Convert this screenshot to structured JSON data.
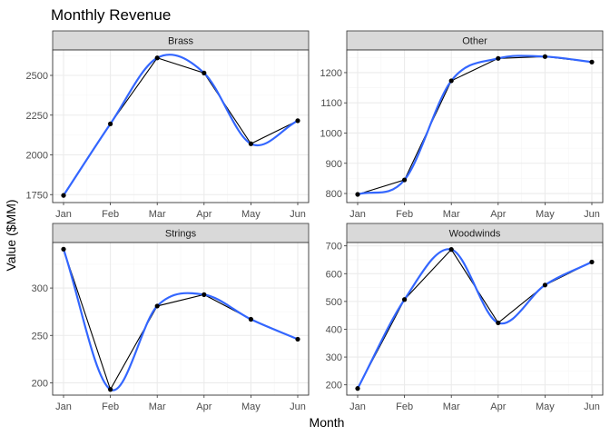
{
  "chart_data": {
    "type": "line",
    "title": "Monthly Revenue",
    "xlabel": "Month",
    "ylabel": "Value ($MM)",
    "categories": [
      "Jan",
      "Feb",
      "Mar",
      "Apr",
      "May",
      "Jun"
    ],
    "grid": true,
    "colors": {
      "line": "#000000",
      "smooth": "#3366ff",
      "point": "#000000",
      "strip": "#d9d9d9",
      "grid_major": "#ebebeb",
      "grid_minor": "#f5f5f5",
      "border": "#333333"
    },
    "panels": [
      {
        "name": "Brass",
        "values": [
          1745,
          2195,
          2610,
          2515,
          2070,
          2215
        ],
        "smooth": [
          1745,
          2195,
          2610,
          2515,
          2070,
          2215
        ],
        "ylim": [
          1700,
          2660
        ],
        "yticks": [
          1750,
          2000,
          2250,
          2500
        ]
      },
      {
        "name": "Other",
        "values": [
          797,
          845,
          1173,
          1247,
          1253,
          1235
        ],
        "smooth": [
          797,
          845,
          1173,
          1247,
          1253,
          1235
        ],
        "ylim": [
          770,
          1275
        ],
        "yticks": [
          800,
          900,
          1000,
          1100,
          1200
        ]
      },
      {
        "name": "Strings",
        "values": [
          341,
          193,
          281,
          293,
          267,
          246
        ],
        "smooth": [
          341,
          193,
          281,
          293,
          267,
          246
        ],
        "ylim": [
          187,
          348
        ],
        "yticks": [
          200,
          250,
          300
        ]
      },
      {
        "name": "Woodwinds",
        "values": [
          187,
          507,
          687,
          423,
          559,
          642
        ],
        "smooth": [
          187,
          507,
          687,
          423,
          559,
          642
        ],
        "ylim": [
          163,
          712
        ],
        "yticks": [
          200,
          300,
          400,
          500,
          600,
          700
        ]
      }
    ]
  }
}
